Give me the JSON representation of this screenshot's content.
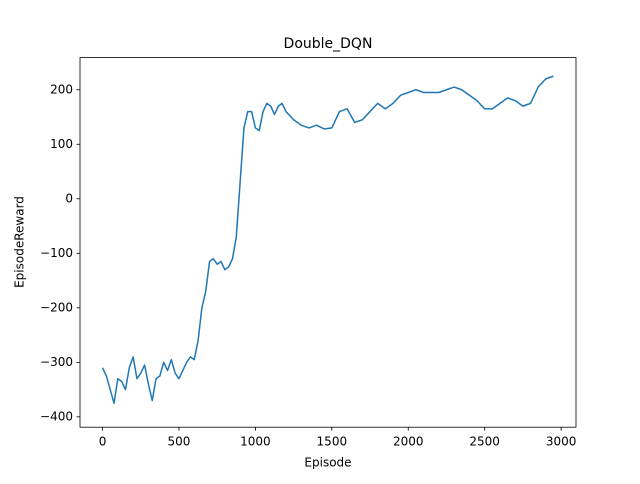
{
  "chart_data": {
    "type": "line",
    "title": "Double_DQN",
    "x_label": "Episode",
    "y_label": "EpisodeReward",
    "x": [
      0,
      25,
      50,
      75,
      100,
      125,
      150,
      175,
      200,
      225,
      250,
      275,
      300,
      325,
      350,
      375,
      400,
      425,
      450,
      475,
      500,
      525,
      550,
      575,
      600,
      625,
      650,
      675,
      700,
      725,
      750,
      775,
      800,
      825,
      850,
      875,
      900,
      925,
      950,
      975,
      1000,
      1025,
      1050,
      1075,
      1100,
      1125,
      1150,
      1175,
      1200,
      1250,
      1300,
      1350,
      1400,
      1450,
      1500,
      1550,
      1600,
      1650,
      1700,
      1750,
      1800,
      1850,
      1900,
      1950,
      2000,
      2050,
      2100,
      2150,
      2200,
      2250,
      2300,
      2350,
      2400,
      2450,
      2500,
      2550,
      2600,
      2650,
      2700,
      2750,
      2800,
      2850,
      2900,
      2950
    ],
    "series": [
      {
        "name": "Double_DQN",
        "color": "#1f77b4",
        "values": [
          -310,
          -325,
          -350,
          -375,
          -330,
          -335,
          -350,
          -310,
          -290,
          -330,
          -320,
          -305,
          -340,
          -370,
          -330,
          -325,
          -300,
          -315,
          -295,
          -320,
          -330,
          -315,
          -300,
          -290,
          -295,
          -260,
          -200,
          -170,
          -115,
          -110,
          -120,
          -115,
          -130,
          -125,
          -110,
          -70,
          30,
          130,
          160,
          160,
          130,
          125,
          160,
          175,
          170,
          155,
          170,
          175,
          160,
          145,
          135,
          130,
          135,
          128,
          130,
          160,
          165,
          140,
          145,
          160,
          175,
          165,
          175,
          190,
          195,
          200,
          195,
          195,
          195,
          200,
          205,
          200,
          190,
          180,
          165,
          165,
          175,
          185,
          180,
          170,
          175,
          205,
          220,
          225
        ]
      }
    ],
    "xlim": [
      -147.5,
      3097.5
    ],
    "xticks": [
      0,
      500,
      1000,
      1500,
      2000,
      2500,
      3000
    ],
    "ylim": [
      -419,
      259
    ],
    "yticks": [
      {
        "value": -400,
        "label": "−400"
      },
      {
        "value": -300,
        "label": "−300"
      },
      {
        "value": -200,
        "label": "−200"
      },
      {
        "value": -100,
        "label": "−100"
      },
      0,
      100,
      200
    ]
  }
}
